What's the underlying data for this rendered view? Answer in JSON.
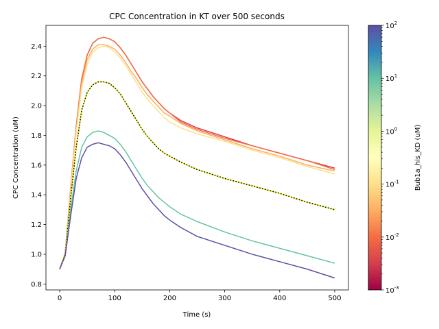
{
  "chart_data": {
    "type": "line",
    "title": "CPC Concentration in KT over 500 seconds",
    "xlabel": "Time (s)",
    "ylabel": "CPC Concentration (uM)",
    "xlim": [
      -25,
      525
    ],
    "ylim": [
      0.76,
      2.54
    ],
    "xticks": [
      0,
      100,
      200,
      300,
      400,
      500
    ],
    "yticks": [
      0.8,
      1.0,
      1.2,
      1.4,
      1.6,
      1.8,
      2.0,
      2.2,
      2.4
    ],
    "grid": false,
    "colorbar": {
      "label": "Bub1a_his_KD (uM)",
      "scale": "log",
      "range": [
        0.001,
        100
      ],
      "ticks": [
        "10^-3",
        "10^-2",
        "10^-1",
        "10^0",
        "10^1",
        "10^2"
      ],
      "colormap_stops": [
        "#9e0142",
        "#d53e4f",
        "#f46d43",
        "#fdae61",
        "#fee08b",
        "#ffffbf",
        "#e6f598",
        "#abdda4",
        "#66c2a5",
        "#3288bd",
        "#5e4fa2"
      ]
    },
    "x": [
      0,
      10,
      20,
      30,
      40,
      50,
      60,
      70,
      80,
      90,
      100,
      110,
      120,
      130,
      140,
      150,
      160,
      170,
      180,
      190,
      200,
      220,
      250,
      300,
      350,
      400,
      450,
      500
    ],
    "series": [
      {
        "color": "#d53e4f",
        "style": "solid",
        "values": [
          0.9,
          1.01,
          1.45,
          1.86,
          2.18,
          2.34,
          2.42,
          2.45,
          2.46,
          2.45,
          2.43,
          2.39,
          2.34,
          2.28,
          2.22,
          2.16,
          2.11,
          2.06,
          2.02,
          1.98,
          1.95,
          1.9,
          1.85,
          1.79,
          1.73,
          1.68,
          1.63,
          1.58
        ]
      },
      {
        "color": "#f46d43",
        "style": "solid",
        "values": [
          0.9,
          1.01,
          1.45,
          1.86,
          2.18,
          2.34,
          2.42,
          2.45,
          2.46,
          2.45,
          2.43,
          2.39,
          2.34,
          2.28,
          2.22,
          2.16,
          2.11,
          2.06,
          2.02,
          1.98,
          1.95,
          1.89,
          1.84,
          1.78,
          1.73,
          1.68,
          1.63,
          1.57
        ]
      },
      {
        "color": "#fdae61",
        "style": "solid",
        "values": [
          0.9,
          1.01,
          1.44,
          1.84,
          2.15,
          2.31,
          2.38,
          2.41,
          2.41,
          2.4,
          2.38,
          2.34,
          2.29,
          2.23,
          2.18,
          2.12,
          2.07,
          2.03,
          1.99,
          1.95,
          1.93,
          1.88,
          1.83,
          1.77,
          1.71,
          1.66,
          1.6,
          1.56
        ]
      },
      {
        "color": "#fee08b",
        "style": "solid",
        "values": [
          0.9,
          1.01,
          1.43,
          1.82,
          2.12,
          2.28,
          2.36,
          2.39,
          2.4,
          2.39,
          2.36,
          2.32,
          2.27,
          2.21,
          2.15,
          2.09,
          2.04,
          2.0,
          1.96,
          1.92,
          1.89,
          1.85,
          1.81,
          1.76,
          1.7,
          1.65,
          1.59,
          1.54
        ]
      },
      {
        "color": "#000000",
        "style": "dotted",
        "values": [
          0.9,
          1.0,
          1.38,
          1.72,
          1.97,
          2.09,
          2.14,
          2.16,
          2.16,
          2.15,
          2.12,
          2.08,
          2.02,
          1.96,
          1.9,
          1.84,
          1.79,
          1.75,
          1.71,
          1.68,
          1.66,
          1.62,
          1.57,
          1.51,
          1.46,
          1.41,
          1.35,
          1.3
        ]
      },
      {
        "color": "#66c2a5",
        "style": "solid",
        "values": [
          0.9,
          0.99,
          1.3,
          1.56,
          1.72,
          1.79,
          1.82,
          1.83,
          1.82,
          1.8,
          1.78,
          1.74,
          1.69,
          1.63,
          1.57,
          1.51,
          1.46,
          1.42,
          1.38,
          1.35,
          1.32,
          1.27,
          1.22,
          1.15,
          1.09,
          1.04,
          0.99,
          0.94
        ]
      },
      {
        "color": "#5e4fa2",
        "style": "solid",
        "values": [
          0.9,
          0.99,
          1.26,
          1.51,
          1.65,
          1.72,
          1.74,
          1.75,
          1.74,
          1.73,
          1.71,
          1.67,
          1.62,
          1.56,
          1.5,
          1.44,
          1.39,
          1.34,
          1.3,
          1.26,
          1.23,
          1.18,
          1.12,
          1.06,
          1.0,
          0.95,
          0.9,
          0.84
        ]
      }
    ]
  }
}
